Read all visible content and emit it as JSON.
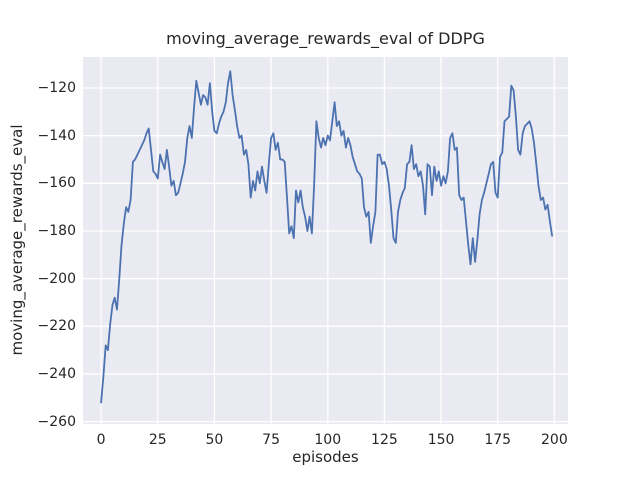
{
  "chart_data": {
    "type": "line",
    "title": "moving_average_rewards_eval of DDPG",
    "xlabel": "episodes",
    "ylabel": "moving_average_rewards_eval",
    "x_tick_labels": [
      "0",
      "25",
      "50",
      "75",
      "100",
      "125",
      "150",
      "175",
      "200"
    ],
    "x_tick_values": [
      0,
      25,
      50,
      75,
      100,
      125,
      150,
      175,
      200
    ],
    "y_tick_labels": [
      "−120",
      "−140",
      "−160",
      "−180",
      "−200",
      "−220",
      "−240",
      "−260"
    ],
    "y_tick_values": [
      -120,
      -140,
      -160,
      -180,
      -200,
      -220,
      -240,
      -260
    ],
    "xlim": [
      -8,
      206
    ],
    "ylim": [
      -261,
      -107
    ],
    "grid": true,
    "legend_position": "none",
    "colors": {
      "figure_background": "#FFFFFF",
      "axes_background": "#EAEAF2",
      "gridline": "#FFFFFF",
      "line": "#4C72B0",
      "text": "#262626"
    },
    "series": [
      {
        "name": "moving_average_rewards_eval",
        "color": "#4C72B0",
        "x_start": 0,
        "x_step": 1,
        "values": [
          -252,
          -241,
          -228,
          -230,
          -219,
          -211,
          -208,
          -213,
          -200,
          -186,
          -177,
          -170,
          -172,
          -167,
          -151,
          -150,
          -148,
          -146,
          -144,
          -142,
          -139,
          -137,
          -146,
          -155,
          -156,
          -158,
          -148,
          -151,
          -154,
          -146,
          -153,
          -161,
          -159,
          -165,
          -164,
          -160,
          -156,
          -151,
          -141,
          -136,
          -141,
          -128,
          -117,
          -122,
          -127,
          -123,
          -124,
          -127,
          -118,
          -130,
          -138,
          -139,
          -135,
          -132,
          -130,
          -126,
          -118,
          -113,
          -123,
          -129,
          -136,
          -141,
          -140,
          -148,
          -146,
          -152,
          -166,
          -159,
          -163,
          -155,
          -160,
          -153,
          -159,
          -164,
          -152,
          -141,
          -139,
          -146,
          -143,
          -150,
          -150,
          -151,
          -166,
          -181,
          -178,
          -183,
          -163,
          -168,
          -163,
          -170,
          -174,
          -180,
          -174,
          -181,
          -160,
          -134,
          -141,
          -145,
          -141,
          -144,
          -140,
          -142,
          -134,
          -126,
          -136,
          -134,
          -140,
          -138,
          -145,
          -141,
          -144,
          -149,
          -152,
          -155,
          -156,
          -158,
          -170,
          -174,
          -172,
          -185,
          -178,
          -172,
          -148,
          -148,
          -152,
          -151,
          -154,
          -161,
          -171,
          -183,
          -185,
          -172,
          -167,
          -164,
          -162,
          -152,
          -151,
          -144,
          -154,
          -152,
          -157,
          -155,
          -161,
          -173,
          -152,
          -153,
          -165,
          -153,
          -159,
          -155,
          -161,
          -157,
          -160,
          -155,
          -141,
          -139,
          -146,
          -145,
          -165,
          -167,
          -166,
          -176,
          -186,
          -194,
          -183,
          -193,
          -184,
          -173,
          -167,
          -164,
          -160,
          -156,
          -152,
          -151,
          -164,
          -166,
          -149,
          -147,
          -134,
          -133,
          -132,
          -119,
          -121,
          -132,
          -146,
          -148,
          -139,
          -136,
          -135,
          -134,
          -137,
          -143,
          -152,
          -161,
          -167,
          -166,
          -171,
          -169,
          -176,
          -182
        ]
      }
    ]
  }
}
